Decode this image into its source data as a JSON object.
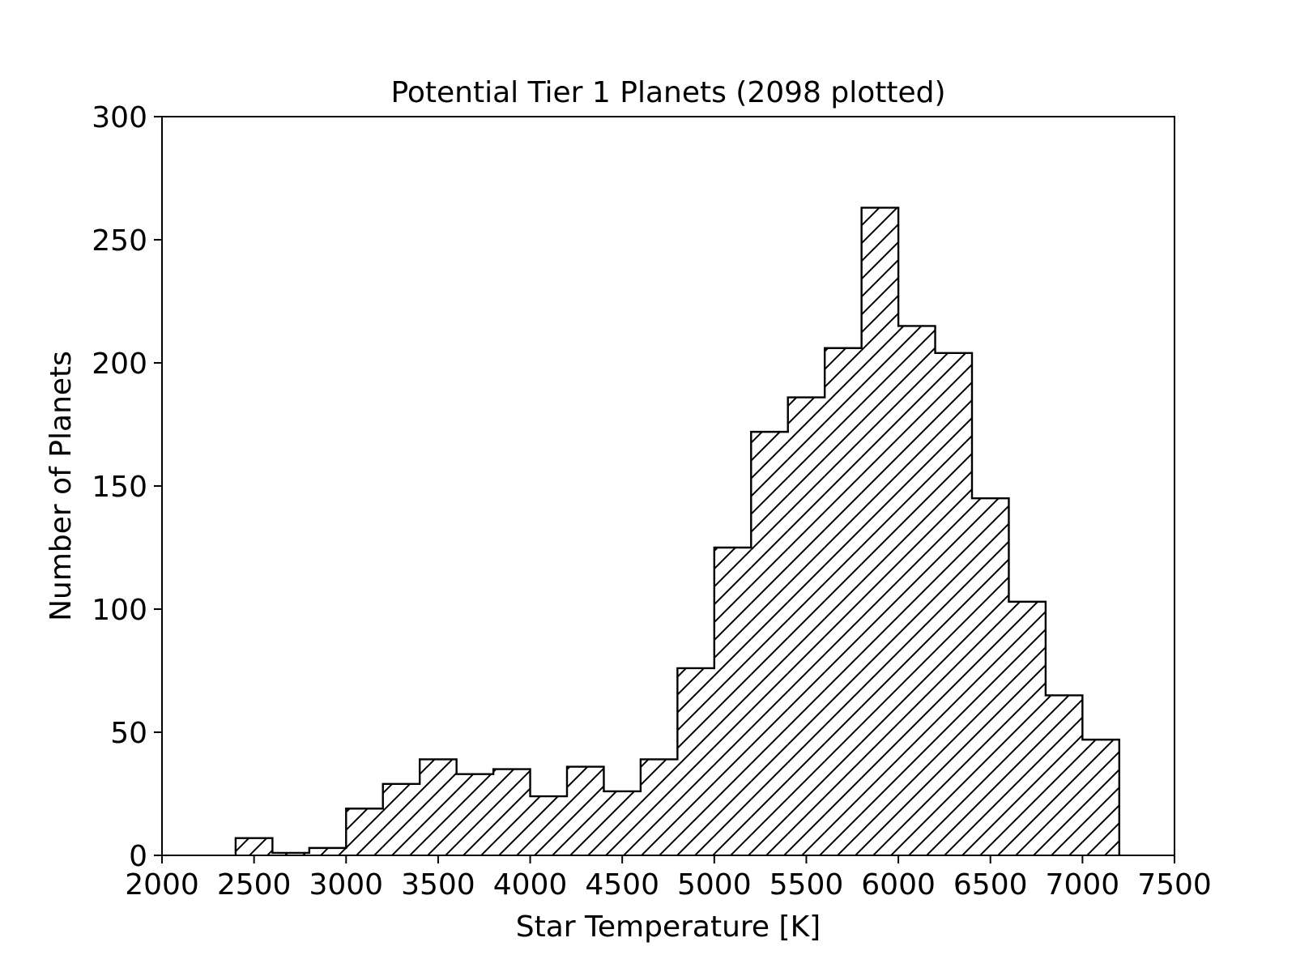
{
  "chart_data": {
    "type": "bar",
    "title": "Potential Tier 1 Planets (2098 plotted)",
    "xlabel": "Star Temperature [K]",
    "ylabel": "Number of Planets",
    "xlim": [
      2000,
      7500
    ],
    "ylim": [
      0,
      300
    ],
    "xticks": [
      2000,
      2500,
      3000,
      3500,
      4000,
      4500,
      5000,
      5500,
      6000,
      6500,
      7000,
      7500
    ],
    "yticks": [
      0,
      50,
      100,
      150,
      200,
      250,
      300
    ],
    "bin_edges": [
      2400,
      2600,
      2800,
      3000,
      3200,
      3400,
      3600,
      3800,
      4000,
      4200,
      4400,
      4600,
      4800,
      5000,
      5200,
      5400,
      5600,
      5800,
      6000,
      6200,
      6400,
      6600,
      6800,
      7000,
      7200
    ],
    "values": [
      7,
      1,
      3,
      19,
      29,
      39,
      33,
      35,
      24,
      36,
      26,
      39,
      76,
      125,
      172,
      186,
      206,
      263,
      215,
      204,
      145,
      103,
      65,
      47
    ],
    "style": "step-filled, hatched",
    "hatch": "diagonal",
    "edge_color": "#000000",
    "fill_color": "#ffffff",
    "grid": false,
    "legend": "none"
  }
}
